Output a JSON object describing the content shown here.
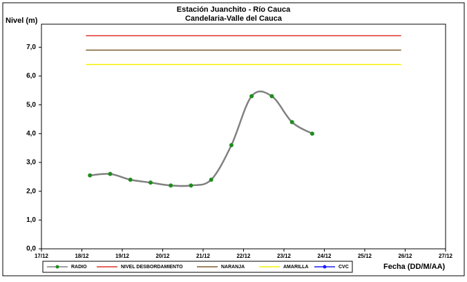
{
  "chart_data": {
    "type": "line",
    "title": "Estación Juanchito - Río Cauca",
    "subtitle": "Candelaria-Valle del Cauca",
    "y_label": "Nivel (m)",
    "x_label": "Fecha (DD/M/AA)",
    "xlim": [
      17,
      27
    ],
    "xticks": [
      {
        "value": 17,
        "label": "17/12"
      },
      {
        "value": 18,
        "label": "18/12"
      },
      {
        "value": 19,
        "label": "19/12"
      },
      {
        "value": 20,
        "label": "20/12"
      },
      {
        "value": 21,
        "label": "21/12"
      },
      {
        "value": 22,
        "label": "22/12"
      },
      {
        "value": 23,
        "label": "23/12"
      },
      {
        "value": 24,
        "label": "24/12"
      },
      {
        "value": 25,
        "label": "25/12"
      },
      {
        "value": 26,
        "label": "26/12"
      },
      {
        "value": 27,
        "label": "27/12"
      }
    ],
    "ylim": [
      0,
      7.8
    ],
    "yticks": [
      {
        "value": 0,
        "label": "0,0"
      },
      {
        "value": 1,
        "label": "1,0"
      },
      {
        "value": 2,
        "label": "2,0"
      },
      {
        "value": 3,
        "label": "3,0"
      },
      {
        "value": 4,
        "label": "4,0"
      },
      {
        "value": 5,
        "label": "5,0"
      },
      {
        "value": 6,
        "label": "6,0"
      },
      {
        "value": 7,
        "label": "7,0"
      }
    ],
    "grid": false,
    "legend": "bottom",
    "series": [
      {
        "name": "RADIO",
        "color": "#808080",
        "marker_color": "#1e8c1e",
        "smooth": true,
        "x": [
          18.2,
          18.7,
          19.2,
          19.7,
          20.2,
          20.7,
          21.2,
          21.7,
          22.2,
          22.7,
          23.2,
          23.7
        ],
        "values": [
          2.55,
          2.6,
          2.4,
          2.3,
          2.2,
          2.2,
          2.4,
          3.6,
          5.3,
          5.3,
          4.4,
          4.0
        ]
      },
      {
        "name": "NIVEL DESBORDAMIENTO",
        "color": "#e0302a",
        "x": [
          18.1,
          25.9
        ],
        "values": [
          7.4,
          7.4
        ]
      },
      {
        "name": "NARANJA",
        "color": "#7a5a2a",
        "x": [
          18.1,
          25.9
        ],
        "values": [
          6.9,
          6.9
        ]
      },
      {
        "name": "AMARILLA",
        "color": "#f5f000",
        "x": [
          18.1,
          25.9
        ],
        "values": [
          6.4,
          6.4
        ]
      },
      {
        "name": "CVC",
        "color": "#1a1aff",
        "marker_color": "#1a1aff",
        "x": [],
        "values": []
      }
    ]
  }
}
